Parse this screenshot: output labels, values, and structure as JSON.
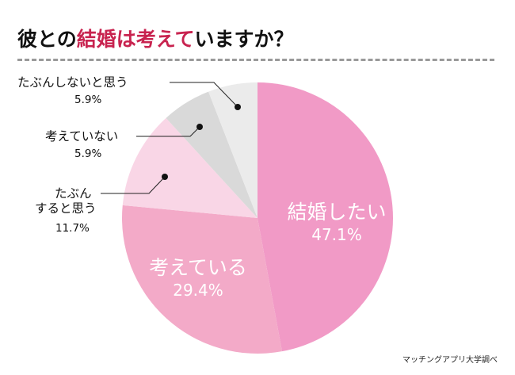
{
  "title": {
    "part1": "彼との",
    "highlight": "結婚は考えて",
    "part2": "いますか？",
    "highlight_color": "#c8234f"
  },
  "source": "マッチングアプリ大学調べ",
  "chart_data": {
    "type": "pie",
    "start": "12 o'clock, clockwise",
    "slices": [
      {
        "label": "結婚したい",
        "label_lines": [
          "結婚した",
          "い"
        ],
        "value": 47.1,
        "pct_text": "47.1%",
        "color": "#f19ac6"
      },
      {
        "label": "考えている",
        "value": 29.4,
        "pct_text": "29.4%",
        "color": "#f3aac8"
      },
      {
        "label": "たぶんすると思う",
        "label_lines": [
          "たぶん",
          "すると思う"
        ],
        "value": 11.7,
        "pct_text": "11.7%",
        "color": "#f9d6e6"
      },
      {
        "label": "考えていない",
        "value": 5.9,
        "pct_text": "5.9%",
        "color": "#d9d9d9"
      },
      {
        "label": "たぶんしないと思う",
        "value": 5.9,
        "pct_text": "5.9%",
        "color": "#ebebeb"
      }
    ]
  }
}
